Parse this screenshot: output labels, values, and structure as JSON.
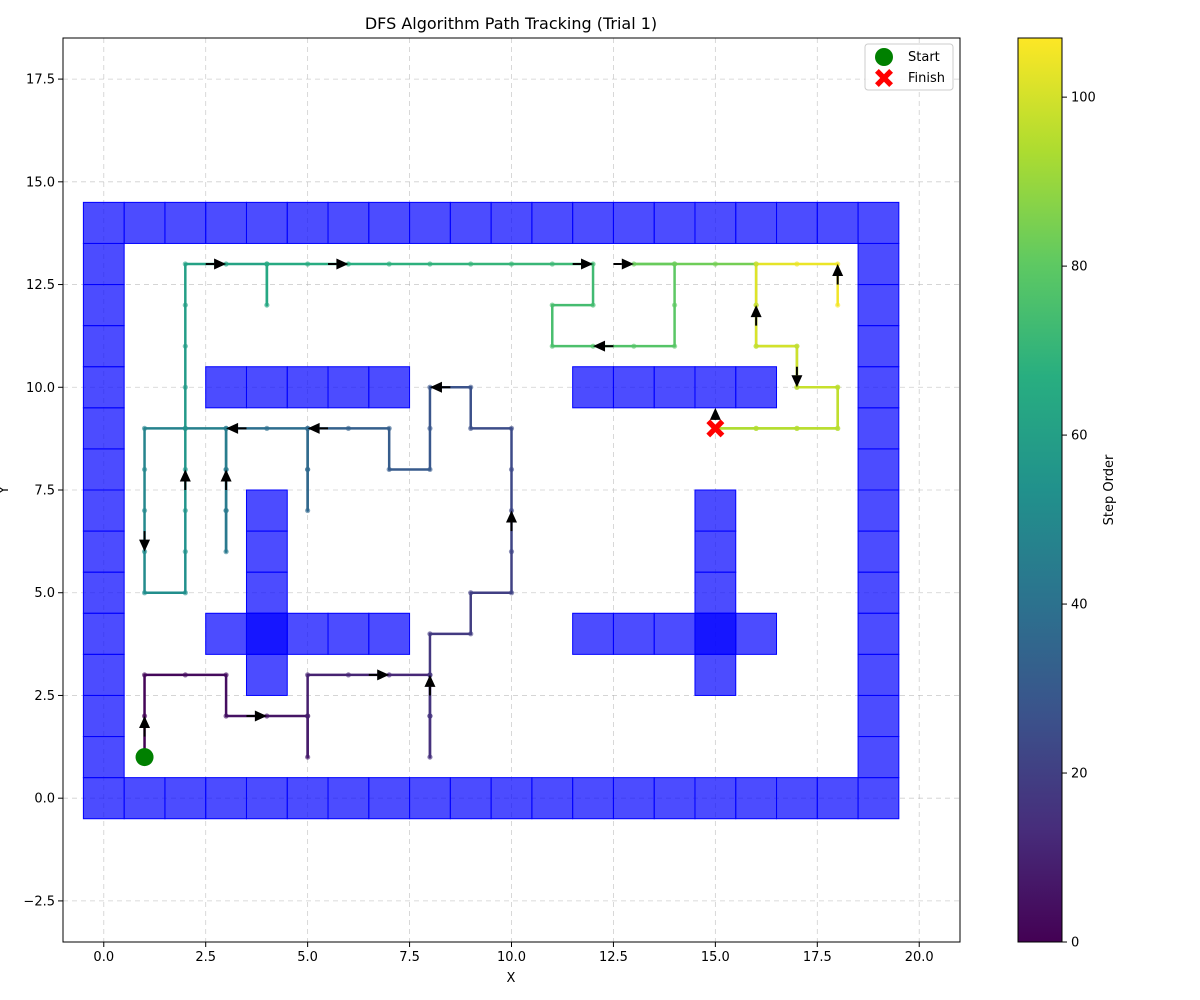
{
  "chart_data": {
    "type": "line",
    "title": "DFS Algorithm Path Tracking (Trial 1)",
    "xlabel": "X",
    "ylabel": "Y",
    "xlim": [
      -1.0,
      21.0
    ],
    "ylim": [
      -3.5,
      18.5
    ],
    "xticks": [
      "0.0",
      "2.5",
      "5.0",
      "7.5",
      "10.0",
      "12.5",
      "15.0",
      "17.5",
      "20.0"
    ],
    "yticks": [
      "−2.5",
      "0.0",
      "2.5",
      "5.0",
      "7.5",
      "10.0",
      "12.5",
      "15.0",
      "17.5"
    ],
    "grid": true,
    "legend": {
      "placement": "top-right",
      "entries": [
        {
          "label": "Start",
          "marker": "circle",
          "color": "#008000"
        },
        {
          "label": "Finish",
          "marker": "x",
          "color": "#ff0000"
        }
      ]
    },
    "start": [
      1,
      1
    ],
    "finish": [
      15,
      9
    ],
    "walls": {
      "color": "#0000ff",
      "runs": [
        {
          "x0": 0,
          "x1": 19,
          "y": 0
        },
        {
          "x0": 0,
          "x1": 19,
          "y": 14
        },
        {
          "x": 0,
          "y0": 1,
          "y1": 13
        },
        {
          "x": 19,
          "y0": 1,
          "y1": 13
        },
        {
          "x0": 3,
          "x1": 7,
          "y": 10
        },
        {
          "x0": 3,
          "x1": 7,
          "y": 4
        },
        {
          "x": 4,
          "y0": 3,
          "y1": 7
        },
        {
          "x0": 12,
          "x1": 16,
          "y": 10
        },
        {
          "x0": 12,
          "x1": 16,
          "y": 4
        },
        {
          "x": 15,
          "y0": 3,
          "y1": 7
        }
      ]
    },
    "path": [
      [
        1,
        1
      ],
      [
        1,
        2
      ],
      [
        1,
        3
      ],
      [
        2,
        3
      ],
      [
        3,
        3
      ],
      [
        3,
        2
      ],
      [
        4,
        2
      ],
      [
        5,
        2
      ],
      [
        5,
        1
      ],
      [
        5,
        2
      ],
      [
        5,
        3
      ],
      [
        6,
        3
      ],
      [
        7,
        3
      ],
      [
        8,
        3
      ],
      [
        8,
        2
      ],
      [
        8,
        1
      ],
      [
        8,
        2
      ],
      [
        8,
        3
      ],
      [
        8,
        4
      ],
      [
        9,
        4
      ],
      [
        9,
        5
      ],
      [
        10,
        5
      ],
      [
        10,
        6
      ],
      [
        10,
        7
      ],
      [
        10,
        8
      ],
      [
        10,
        9
      ],
      [
        9,
        9
      ],
      [
        9,
        10
      ],
      [
        8,
        10
      ],
      [
        8,
        9
      ],
      [
        8,
        8
      ],
      [
        7,
        8
      ],
      [
        7,
        9
      ],
      [
        6,
        9
      ],
      [
        5,
        9
      ],
      [
        5,
        8
      ],
      [
        5,
        7
      ],
      [
        5,
        8
      ],
      [
        5,
        9
      ],
      [
        4,
        9
      ],
      [
        3,
        9
      ],
      [
        3,
        8
      ],
      [
        3,
        7
      ],
      [
        3,
        6
      ],
      [
        3,
        7
      ],
      [
        3,
        8
      ],
      [
        3,
        9
      ],
      [
        2,
        9
      ],
      [
        1,
        9
      ],
      [
        1,
        8
      ],
      [
        1,
        7
      ],
      [
        1,
        6
      ],
      [
        1,
        5
      ],
      [
        2,
        5
      ],
      [
        2,
        6
      ],
      [
        2,
        7
      ],
      [
        2,
        8
      ],
      [
        2,
        9
      ],
      [
        2,
        10
      ],
      [
        2,
        11
      ],
      [
        2,
        12
      ],
      [
        2,
        13
      ],
      [
        3,
        13
      ],
      [
        4,
        13
      ],
      [
        4,
        12
      ],
      [
        4,
        13
      ],
      [
        5,
        13
      ],
      [
        6,
        13
      ],
      [
        7,
        13
      ],
      [
        8,
        13
      ],
      [
        9,
        13
      ],
      [
        10,
        13
      ],
      [
        11,
        13
      ],
      [
        12,
        13
      ],
      [
        12,
        12
      ],
      [
        11,
        12
      ],
      [
        11,
        11
      ],
      [
        12,
        11
      ],
      [
        13,
        11
      ],
      [
        14,
        11
      ],
      [
        14,
        12
      ],
      [
        14,
        13
      ],
      [
        13,
        13
      ],
      [
        14,
        13
      ],
      [
        15,
        13
      ],
      [
        16,
        13
      ],
      [
        16,
        12
      ],
      [
        16,
        11
      ],
      [
        17,
        11
      ],
      [
        17,
        10
      ],
      [
        18,
        10
      ],
      [
        18,
        9
      ],
      [
        17,
        9
      ],
      [
        16,
        9
      ],
      [
        15,
        9
      ],
      [
        16,
        9
      ],
      [
        17,
        9
      ],
      [
        18,
        9
      ],
      [
        18,
        10
      ],
      [
        17,
        10
      ],
      [
        17,
        11
      ],
      [
        16,
        11
      ],
      [
        16,
        12
      ],
      [
        16,
        13
      ],
      [
        17,
        13
      ],
      [
        18,
        13
      ],
      [
        18,
        12
      ]
    ],
    "arrows": [
      {
        "from": [
          1,
          1.5
        ],
        "to": [
          1,
          2
        ]
      },
      {
        "from": [
          3.5,
          2
        ],
        "to": [
          4,
          2
        ]
      },
      {
        "from": [
          6.5,
          3
        ],
        "to": [
          7,
          3
        ]
      },
      {
        "from": [
          8,
          2.5
        ],
        "to": [
          8,
          3
        ]
      },
      {
        "from": [
          10,
          6.5
        ],
        "to": [
          10,
          7
        ]
      },
      {
        "from": [
          8.5,
          10
        ],
        "to": [
          8,
          10
        ]
      },
      {
        "from": [
          5.5,
          9
        ],
        "to": [
          5,
          9
        ]
      },
      {
        "from": [
          3.5,
          9
        ],
        "to": [
          3,
          9
        ]
      },
      {
        "from": [
          3,
          7.5
        ],
        "to": [
          3,
          8
        ]
      },
      {
        "from": [
          1,
          6.5
        ],
        "to": [
          1,
          6
        ]
      },
      {
        "from": [
          2,
          7.5
        ],
        "to": [
          2,
          8
        ]
      },
      {
        "from": [
          2.5,
          13
        ],
        "to": [
          3,
          13
        ]
      },
      {
        "from": [
          5.5,
          13
        ],
        "to": [
          6,
          13
        ]
      },
      {
        "from": [
          11.5,
          13
        ],
        "to": [
          12,
          13
        ]
      },
      {
        "from": [
          12.5,
          11
        ],
        "to": [
          12,
          11
        ]
      },
      {
        "from": [
          12.5,
          13
        ],
        "to": [
          13,
          13
        ]
      },
      {
        "from": [
          16,
          11.5
        ],
        "to": [
          16,
          12
        ]
      },
      {
        "from": [
          17,
          10.5
        ],
        "to": [
          17,
          10
        ]
      },
      {
        "from": [
          15,
          9.3
        ],
        "to": [
          15,
          9.5
        ]
      },
      {
        "from": [
          18,
          12.5
        ],
        "to": [
          18,
          13
        ]
      }
    ],
    "colorbar": {
      "label": "Step Order",
      "colormap": "viridis",
      "range": [
        0,
        107
      ],
      "ticks": [
        0,
        20,
        40,
        60,
        80,
        100
      ]
    }
  }
}
